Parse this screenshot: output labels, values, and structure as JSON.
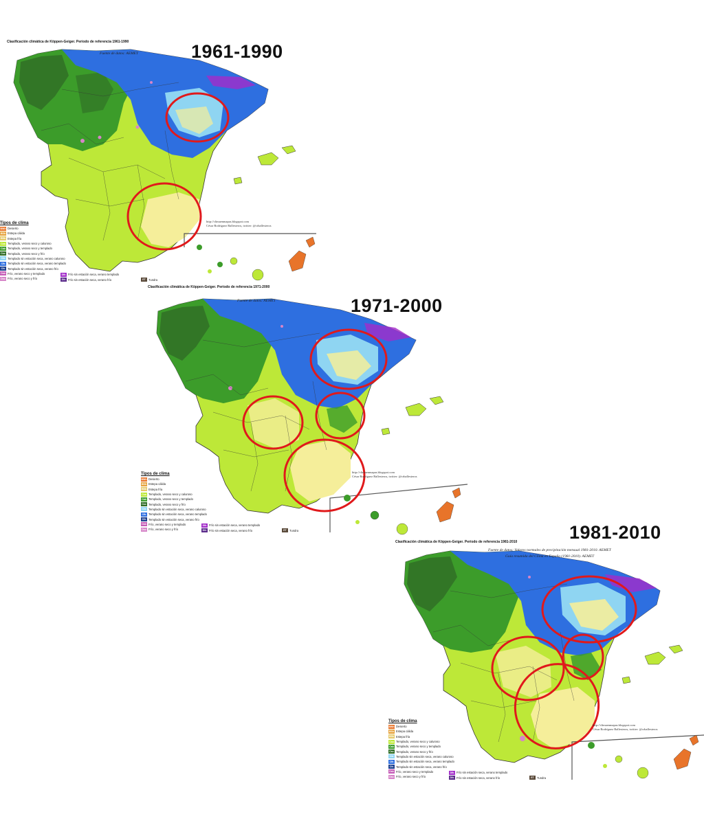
{
  "panels": [
    {
      "title": "Clasificación climática de Köppen-Geiger. Período de referencia 1961-1990",
      "period": "1961-1990",
      "source": "Fuente de datos: AEMET",
      "credit": [
        "http://climaenmapas.blogspot.com",
        "César Rodríguez Ballesteros, twitter: @crballesteros"
      ]
    },
    {
      "title": "Clasificación climática de Köppen-Geiger. Período de referencia 1971-2000",
      "period": "1971-2000",
      "source": "Fuente de datos: AEMET",
      "credit": [
        "http://climaenmapas.blogspot.com",
        "César Rodríguez Ballesteros, twitter: @crballesteros"
      ]
    },
    {
      "title": "Clasificación climática de Köppen-Geiger. Período de referencia 1981-2010",
      "period": "1981-2010",
      "source": "Fuente de datos: Valores normales de precipitación mensual 1981-2010. AEMET",
      "source2": "Guía resumida del Clima en España (1981-2010). AEMET",
      "credit": [
        "http://climaenmapas.blogspot.com",
        "César Rodríguez Ballesteros, twitter: @crballesteros"
      ]
    }
  ],
  "legend": {
    "title": "Tipos de clima",
    "items": [
      {
        "code": "BWh",
        "label": "Desierto",
        "color": "#e8742a"
      },
      {
        "code": "BSh",
        "label": "Estepa cálida",
        "color": "#e6a23c"
      },
      {
        "code": "BSk",
        "label": "Estepa fría",
        "color": "#e6c96a"
      },
      {
        "code": "Csa",
        "label": "Templado, verano seco y caluroso",
        "color": "#bde838"
      },
      {
        "code": "Csb",
        "label": "Templado, verano seco y templado",
        "color": "#3c9c2a"
      },
      {
        "code": "Csc",
        "label": "Templado, verano seco y frío",
        "color": "#2f6d26"
      },
      {
        "code": "Cfa",
        "label": "Templado sin estación seca, verano caluroso",
        "color": "#8fd5f2"
      },
      {
        "code": "Cfb",
        "label": "Templado sin estación seca, verano templado",
        "color": "#2e6fe0"
      },
      {
        "code": "Cfc",
        "label": "Templado sin estación seca, verano frío",
        "color": "#1c3f8e"
      },
      {
        "code": "Dsb",
        "label": "Frío, verano seco y templado",
        "color": "#c45ab6"
      },
      {
        "code": "Dsc",
        "label": "Frío, verano seco y frío",
        "color": "#d685c8"
      }
    ],
    "extra": [
      {
        "code": "Dfb",
        "label": "Frío sin estación seca, verano templado",
        "color": "#a22cc9"
      },
      {
        "code": "Dfc",
        "label": "Frío sin estación seca, verano frío",
        "color": "#5a2a8a"
      },
      {
        "code": "ET",
        "label": "Tundra",
        "color": "#5a4a3a"
      }
    ]
  },
  "colors": {
    "highlight_circle": "#e0191b",
    "land_lightgreen": "#bde838",
    "land_green": "#3c9c2a",
    "land_darkgreen": "#2f6d26",
    "land_blue": "#2e6fe0",
    "land_lightblue": "#8fd5f2",
    "land_yellow": "#f5ee9a",
    "canary_orange": "#e8742a",
    "pink": "#d685c8",
    "purple": "#a22cc9"
  }
}
